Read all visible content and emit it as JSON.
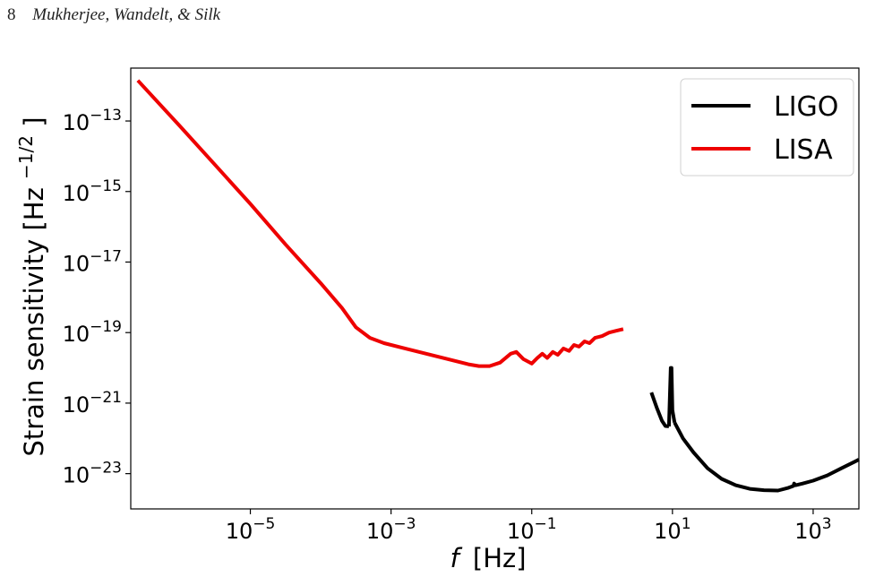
{
  "header": {
    "page_number": "8",
    "authors": "Mukherjee, Wandelt, & Silk"
  },
  "chart_data": {
    "type": "line",
    "title": "",
    "xlabel_italic": "f",
    "xlabel_unit": "[Hz]",
    "ylabel": "Strain sensitivity [Hz",
    "ylabel_exp": "−1/2",
    "ylabel_close": "]",
    "xscale": "log",
    "yscale": "log",
    "xlim_log10": [
      -6.7,
      3.65
    ],
    "ylim_log10": [
      -24.0,
      -11.5
    ],
    "grid": false,
    "legend_position": "top-right",
    "x_ticks": [
      {
        "base": "10",
        "exp": "−5",
        "log10": -5
      },
      {
        "base": "10",
        "exp": "−3",
        "log10": -3
      },
      {
        "base": "10",
        "exp": "−1",
        "log10": -1
      },
      {
        "base": "10",
        "exp": "1",
        "log10": 1
      },
      {
        "base": "10",
        "exp": "3",
        "log10": 3
      }
    ],
    "y_ticks": [
      {
        "base": "10",
        "exp": "−13",
        "log10": -13
      },
      {
        "base": "10",
        "exp": "−15",
        "log10": -15
      },
      {
        "base": "10",
        "exp": "−17",
        "log10": -17
      },
      {
        "base": "10",
        "exp": "−19",
        "log10": -19
      },
      {
        "base": "10",
        "exp": "−21",
        "log10": -21
      },
      {
        "base": "10",
        "exp": "−23",
        "log10": -23
      }
    ],
    "series": [
      {
        "name": "LIGO",
        "color": "#000000",
        "segments": [
          [
            [
              0.7,
              -20.7
            ],
            [
              0.78,
              -21.15
            ],
            [
              0.85,
              -21.5
            ],
            [
              0.9,
              -21.65
            ],
            [
              0.95,
              -21.66
            ]
          ],
          [
            [
              0.95,
              -21.66
            ],
            [
              0.975,
              -20.0
            ],
            [
              0.987,
              -20.0
            ],
            [
              1.0,
              -21.2
            ],
            [
              1.03,
              -21.55
            ]
          ],
          [
            [
              1.03,
              -21.55
            ],
            [
              1.15,
              -22.0
            ],
            [
              1.3,
              -22.4
            ],
            [
              1.5,
              -22.85
            ],
            [
              1.7,
              -23.15
            ],
            [
              1.9,
              -23.33
            ],
            [
              2.1,
              -23.43
            ],
            [
              2.3,
              -23.47
            ],
            [
              2.5,
              -23.48
            ],
            [
              2.65,
              -23.4
            ],
            [
              2.72,
              -23.35
            ],
            [
              2.73,
              -23.28
            ],
            [
              2.75,
              -23.33
            ],
            [
              2.85,
              -23.28
            ],
            [
              3.0,
              -23.2
            ],
            [
              3.2,
              -23.05
            ],
            [
              3.4,
              -22.85
            ],
            [
              3.6,
              -22.65
            ],
            [
              3.65,
              -22.6
            ]
          ]
        ]
      },
      {
        "name": "LISA",
        "color": "#ee0000",
        "segments": [
          [
            [
              -6.6,
              -11.85
            ],
            [
              -6.0,
              -13.15
            ],
            [
              -5.5,
              -14.25
            ],
            [
              -5.0,
              -15.35
            ],
            [
              -4.5,
              -16.5
            ],
            [
              -4.0,
              -17.6
            ],
            [
              -3.7,
              -18.3
            ],
            [
              -3.5,
              -18.85
            ],
            [
              -3.3,
              -19.15
            ],
            [
              -3.1,
              -19.3
            ],
            [
              -2.8,
              -19.45
            ],
            [
              -2.5,
              -19.6
            ],
            [
              -2.2,
              -19.75
            ],
            [
              -1.9,
              -19.9
            ],
            [
              -1.75,
              -19.95
            ],
            [
              -1.6,
              -19.95
            ],
            [
              -1.45,
              -19.85
            ],
            [
              -1.3,
              -19.6
            ],
            [
              -1.22,
              -19.55
            ],
            [
              -1.12,
              -19.75
            ],
            [
              -1.0,
              -19.88
            ],
            [
              -0.92,
              -19.72
            ],
            [
              -0.85,
              -19.6
            ],
            [
              -0.78,
              -19.72
            ],
            [
              -0.7,
              -19.55
            ],
            [
              -0.63,
              -19.63
            ],
            [
              -0.55,
              -19.45
            ],
            [
              -0.47,
              -19.52
            ],
            [
              -0.4,
              -19.35
            ],
            [
              -0.33,
              -19.4
            ],
            [
              -0.25,
              -19.25
            ],
            [
              -0.18,
              -19.3
            ],
            [
              -0.1,
              -19.15
            ],
            [
              0.0,
              -19.1
            ],
            [
              0.1,
              -19.0
            ],
            [
              0.2,
              -18.95
            ],
            [
              0.3,
              -18.9
            ]
          ]
        ]
      }
    ]
  }
}
